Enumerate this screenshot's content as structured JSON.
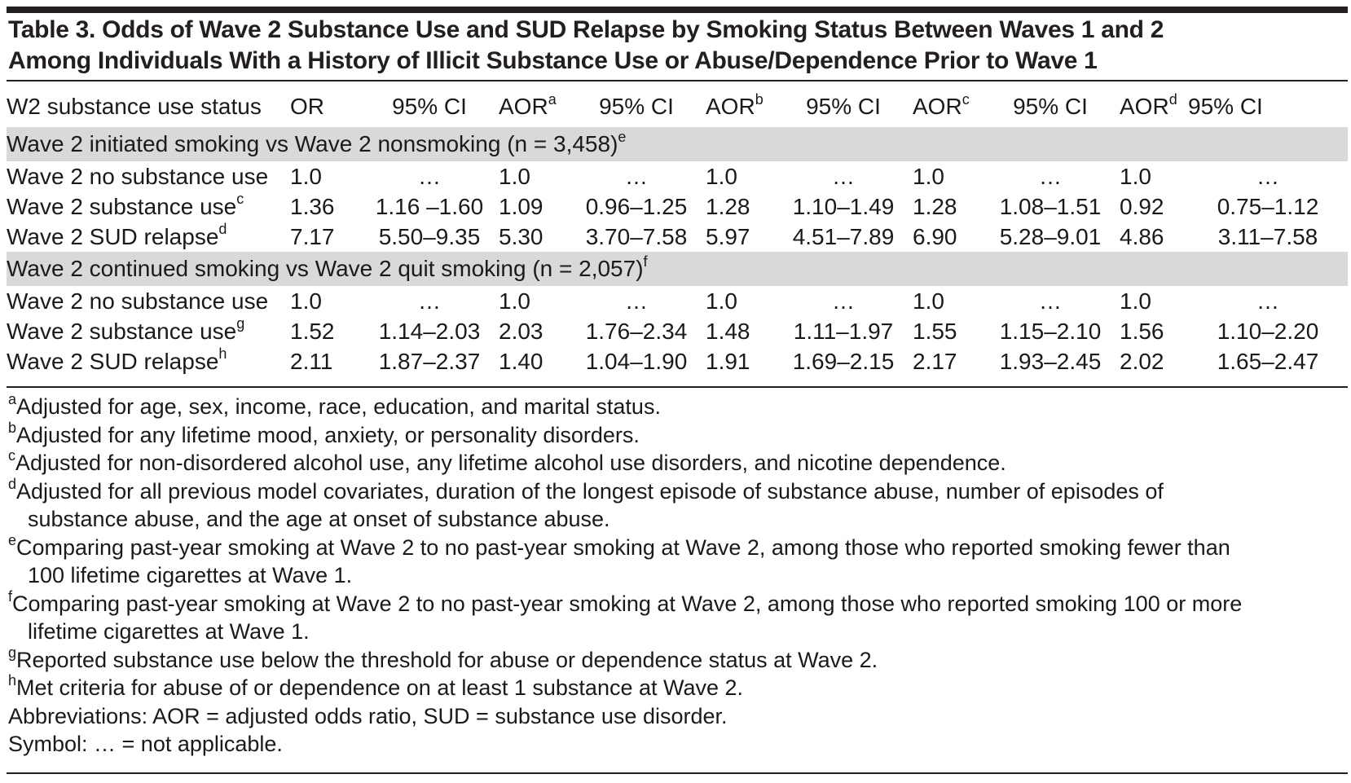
{
  "title": {
    "line1": "Table 3. Odds of Wave 2 Substance Use and SUD Relapse by Smoking Status Between Waves 1 and 2",
    "line2": "Among Individuals With a History of Illicit Substance Use or Abuse/Dependence Prior to Wave 1"
  },
  "header": {
    "status": "W2 substance use status",
    "or": "OR",
    "ci1": "95% CI",
    "aor_a": "AOR",
    "aor_a_sup": "a",
    "ci2": "95% CI",
    "aor_b": "AOR",
    "aor_b_sup": "b",
    "ci3": "95% CI",
    "aor_c": "AOR",
    "aor_c_sup": "c",
    "ci4": "95% CI",
    "aor_d": "AOR",
    "aor_d_sup": "d",
    "ci5": "95% CI"
  },
  "sections": [
    {
      "label": "Wave 2 initiated smoking vs Wave 2 nonsmoking (n = 3,458)",
      "label_sup": "e",
      "rows": [
        {
          "label": "Wave 2 no substance use",
          "sup": "",
          "cells": [
            "1.0",
            "…",
            "1.0",
            "…",
            "1.0",
            "…",
            "1.0",
            "…",
            "1.0",
            "…"
          ]
        },
        {
          "label": "Wave 2 substance use",
          "sup": "c",
          "cells": [
            "1.36",
            "1.16 –1.60",
            "1.09",
            "0.96–1.25",
            "1.28",
            "1.10–1.49",
            "1.28",
            "1.08–1.51",
            "0.92",
            "0.75–1.12"
          ]
        },
        {
          "label": "Wave 2 SUD relapse",
          "sup": "d",
          "cells": [
            "7.17",
            "5.50–9.35",
            "5.30",
            "3.70–7.58",
            "5.97",
            "4.51–7.89",
            "6.90",
            "5.28–9.01",
            "4.86",
            "3.11–7.58"
          ]
        }
      ]
    },
    {
      "label": "Wave 2 continued smoking vs Wave 2 quit smoking (n = 2,057)",
      "label_sup": "f",
      "rows": [
        {
          "label": "Wave 2 no substance use",
          "sup": "",
          "cells": [
            "1.0",
            "…",
            "1.0",
            "…",
            "1.0",
            "…",
            "1.0",
            "…",
            "1.0",
            "…"
          ]
        },
        {
          "label": "Wave 2 substance use",
          "sup": "g",
          "cells": [
            "1.52",
            "1.14–2.03",
            "2.03",
            "1.76–2.34",
            "1.48",
            "1.11–1.97",
            "1.55",
            "1.15–2.10",
            "1.56",
            "1.10–2.20"
          ]
        },
        {
          "label": "Wave 2 SUD relapse",
          "sup": "h",
          "cells": [
            "2.11",
            "1.87–2.37",
            "1.40",
            "1.04–1.90",
            "1.91",
            "1.69–2.15",
            "2.17",
            "1.93–2.45",
            "2.02",
            "1.65–2.47"
          ]
        }
      ]
    }
  ],
  "notes": [
    {
      "sup": "a",
      "line1": "Adjusted for age, sex, income, race, education, and marital status.",
      "line2": ""
    },
    {
      "sup": "b",
      "line1": "Adjusted for any lifetime mood, anxiety, or personality disorders.",
      "line2": ""
    },
    {
      "sup": "c",
      "line1": "Adjusted for non-disordered alcohol use, any lifetime alcohol use disorders, and nicotine dependence.",
      "line2": ""
    },
    {
      "sup": "d",
      "line1": "Adjusted for all previous model covariates, duration of the longest episode of substance abuse, number of episodes of",
      "line2": "substance abuse, and the age at onset of substance abuse."
    },
    {
      "sup": "e",
      "line1": "Comparing past-year smoking at Wave 2 to no past-year smoking at Wave 2, among those who reported smoking fewer than",
      "line2": "100 lifetime cigarettes at Wave 1."
    },
    {
      "sup": "f",
      "line1": "Comparing past-year smoking at Wave 2 to no past-year smoking at Wave 2, among those who reported smoking 100 or more",
      "line2": "lifetime cigarettes at Wave 1."
    },
    {
      "sup": "g",
      "line1": "Reported substance use below the threshold for abuse or dependence status at Wave 2.",
      "line2": ""
    },
    {
      "sup": "h",
      "line1": "Met criteria for abuse of or dependence on at least 1 substance at Wave 2.",
      "line2": ""
    }
  ],
  "abbreviations": "Abbreviations: AOR = adjusted odds ratio, SUD = substance use disorder.",
  "symbol": "Symbol: … = not applicable."
}
